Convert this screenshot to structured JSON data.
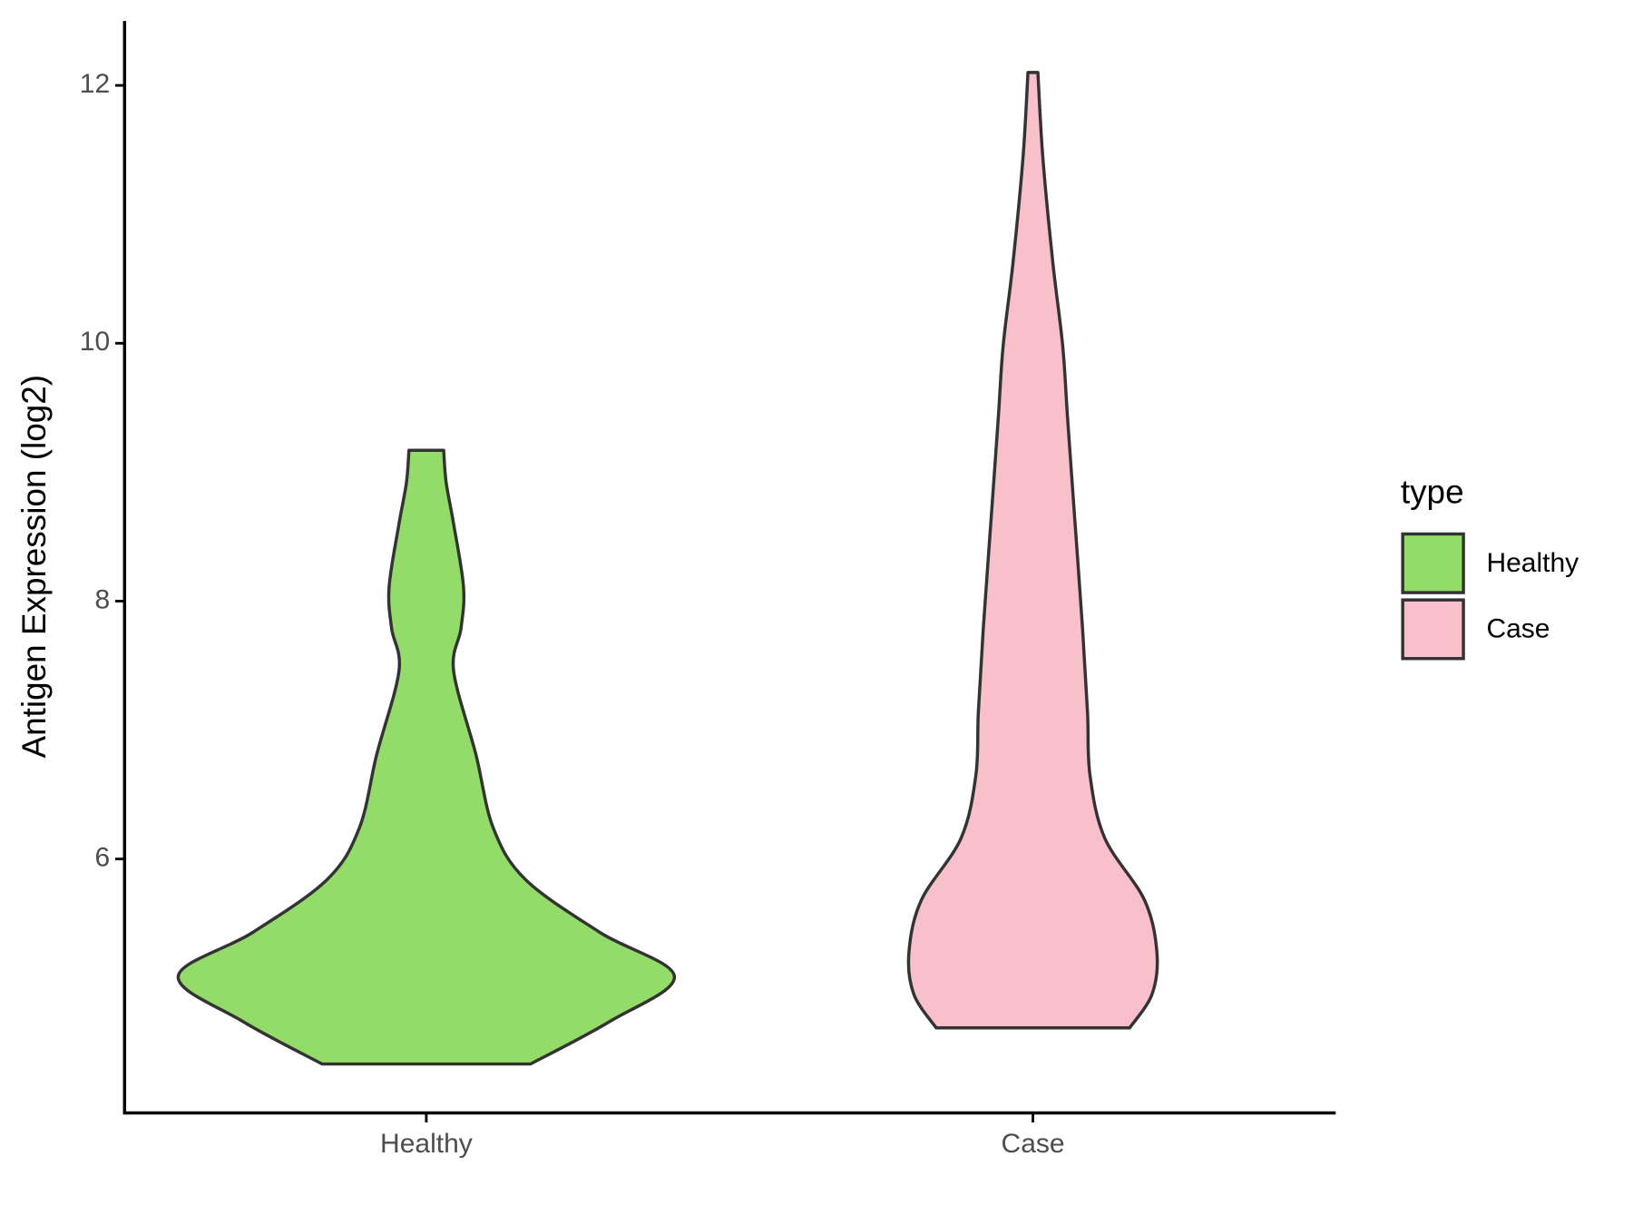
{
  "chart_data": {
    "type": "violin",
    "y_label": "Antigen Expression (log2)",
    "categories": [
      "Healthy",
      "Case"
    ],
    "ylim": [
      4.03,
      12.5
    ],
    "yticks": [
      6,
      8,
      10,
      12
    ],
    "legend_title": "type",
    "legend_position": "right",
    "series": [
      {
        "name": "Healthy",
        "color": "#93dc6a",
        "y": [
          4.41,
          4.74,
          5.09,
          5.43,
          5.84,
          6.24,
          6.81,
          7.46,
          7.79,
          8.11,
          8.6,
          8.92,
          9.17
        ],
        "width": [
          0.42,
          0.74,
          1.0,
          0.7,
          0.4,
          0.27,
          0.2,
          0.11,
          0.14,
          0.15,
          0.11,
          0.08,
          0.07
        ]
      },
      {
        "name": "Case",
        "color": "#f7c0cb",
        "y": [
          4.69,
          4.95,
          5.27,
          5.68,
          6.16,
          6.65,
          7.14,
          7.79,
          8.6,
          9.41,
          9.98,
          10.63,
          11.44,
          12.1
        ],
        "width": [
          0.39,
          0.48,
          0.5,
          0.45,
          0.29,
          0.23,
          0.22,
          0.2,
          0.17,
          0.14,
          0.12,
          0.08,
          0.04,
          0.02
        ]
      }
    ]
  }
}
